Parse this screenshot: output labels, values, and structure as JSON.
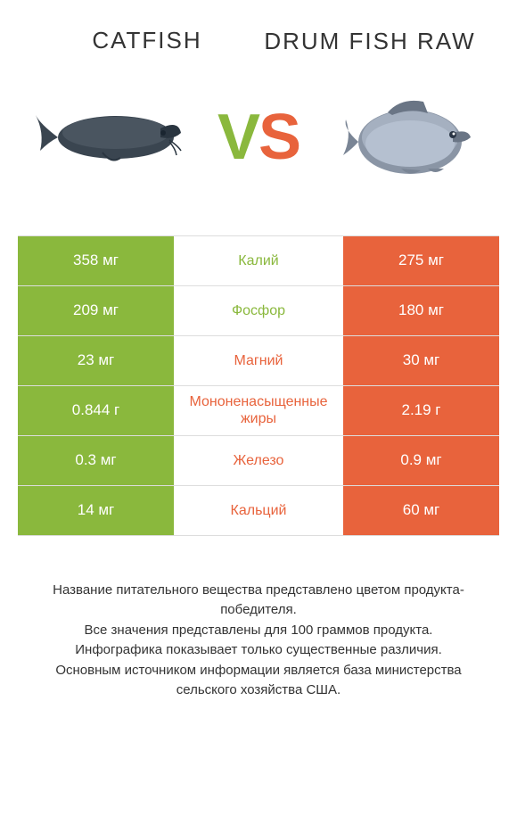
{
  "colors": {
    "left": "#8ab83d",
    "right": "#e8633c",
    "border": "#dddddd",
    "text": "#333333",
    "bg": "#ffffff"
  },
  "header": {
    "left_title": "CATFISH",
    "right_title": "DRUM FISH RAW",
    "vs_v": "V",
    "vs_s": "S"
  },
  "table": {
    "rows": [
      {
        "left": "358 мг",
        "label": "Калий",
        "right": "275 мг",
        "winner": "left"
      },
      {
        "left": "209 мг",
        "label": "Фосфор",
        "right": "180 мг",
        "winner": "left"
      },
      {
        "left": "23 мг",
        "label": "Магний",
        "right": "30 мг",
        "winner": "right"
      },
      {
        "left": "0.844 г",
        "label": "Мононенасыщенные жиры",
        "right": "2.19 г",
        "winner": "right"
      },
      {
        "left": "0.3 мг",
        "label": "Железо",
        "right": "0.9 мг",
        "winner": "right"
      },
      {
        "left": "14 мг",
        "label": "Кальций",
        "right": "60 мг",
        "winner": "right"
      }
    ]
  },
  "footer": {
    "line1": "Название питательного вещества представлено цветом продукта-победителя.",
    "line2": "Все значения представлены для 100 граммов продукта.",
    "line3": "Инфографика показывает только существенные различия.",
    "line4": "Основным источником информации является база министерства сельского хозяйства США."
  }
}
